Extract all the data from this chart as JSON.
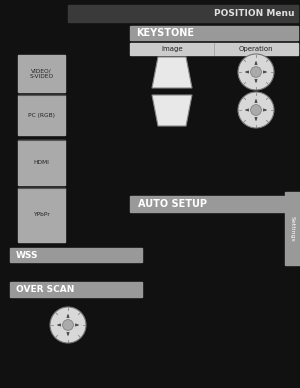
{
  "bg_color": "#111111",
  "title_bar_color": "#3a3a3a",
  "title_text": "POSITION Menu",
  "title_text_color": "#e0e0e0",
  "keystone_bar_color": "#999999",
  "keystone_text": "KEYSTONE",
  "keystone_text_color": "#ffffff",
  "auto_setup_bar_color": "#999999",
  "auto_setup_text": "AUTO SETUP",
  "auto_setup_text_color": "#ffffff",
  "wss_bar_color": "#999999",
  "wss_text": "WSS",
  "wss_text_color": "#ffffff",
  "over_scan_bar_color": "#999999",
  "over_scan_text": "OVER SCAN",
  "over_scan_text_color": "#ffffff",
  "signal_box_color": "#aaaaaa",
  "signal_box_text_color": "#222222",
  "signals": [
    "VIDEO/\nS-VIDEO",
    "PC (RGB)",
    "HDMI",
    "YPbPr"
  ],
  "settings_tab_color": "#999999",
  "settings_text": "Settings",
  "image_label": "Image",
  "operation_label": "Operation",
  "header_row_color": "#cccccc",
  "header_text_color": "#222222",
  "trap_color": "#e8e8e8",
  "trap_edge_color": "#888888",
  "dial_color": "#d8d8d8",
  "dial_edge_color": "#777777",
  "dial_inner_color": "#aaaaaa",
  "dial_arrow_color": "#444444"
}
